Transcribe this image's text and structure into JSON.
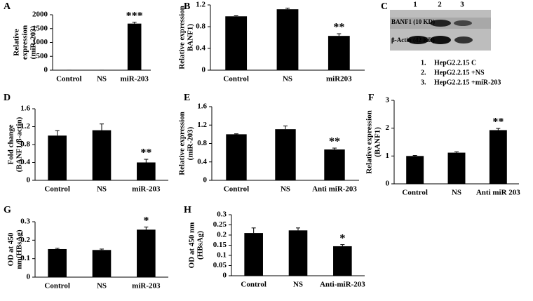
{
  "chart_data": [
    {
      "type": "bar",
      "panel": "A",
      "ylabel": [
        "Relative",
        "expression",
        "(miR-203)"
      ],
      "categories": [
        "Control",
        "NS",
        "miR-203"
      ],
      "values": [
        1,
        1,
        1680
      ],
      "errors": [
        0,
        0,
        50
      ],
      "annotations": [
        null,
        null,
        "***"
      ],
      "ylim": [
        0,
        2000
      ],
      "yticks": [
        0,
        500,
        1000,
        1500,
        2000
      ],
      "color": "#000000"
    },
    {
      "type": "bar",
      "panel": "B",
      "ylabel": [
        "Relative expression",
        "BANF1)"
      ],
      "categories": [
        "Control",
        "NS",
        "miR203"
      ],
      "values": [
        0.99,
        1.12,
        0.63
      ],
      "errors": [
        0.01,
        0.02,
        0.04
      ],
      "annotations": [
        null,
        null,
        "**"
      ],
      "ylim": [
        0,
        1.2
      ],
      "yticks": [
        0,
        0.4,
        0.8,
        1.2
      ],
      "color": "#000000"
    },
    {
      "type": "bar",
      "panel": "D",
      "ylabel": [
        "Fold change",
        "(BANF1/β-actin)"
      ],
      "categories": [
        "Control",
        "NS",
        "miR-203"
      ],
      "values": [
        1.0,
        1.12,
        0.4
      ],
      "errors": [
        0.11,
        0.14,
        0.07
      ],
      "annotations": [
        null,
        null,
        "**"
      ],
      "ylim": [
        0,
        1.6
      ],
      "yticks": [
        0,
        0.4,
        0.8,
        1.2,
        1.6
      ],
      "color": "#000000"
    },
    {
      "type": "bar",
      "panel": "E",
      "ylabel": [
        "Relative expression",
        "(miR-203)"
      ],
      "categories": [
        "Control",
        "NS",
        "Anti miR-203"
      ],
      "values": [
        1.0,
        1.11,
        0.67
      ],
      "errors": [
        0.01,
        0.07,
        0.03
      ],
      "annotations": [
        null,
        null,
        "**"
      ],
      "ylim": [
        0,
        1.6
      ],
      "yticks": [
        0,
        0.4,
        0.8,
        1.2,
        1.6
      ],
      "color": "#000000"
    },
    {
      "type": "bar",
      "panel": "F",
      "ylabel": [
        "Relative expression",
        "(BANF1)"
      ],
      "categories": [
        "Control",
        "NS",
        "Anti miR 203"
      ],
      "values": [
        1.0,
        1.12,
        1.93
      ],
      "errors": [
        0.02,
        0.03,
        0.06
      ],
      "annotations": [
        null,
        null,
        "**"
      ],
      "ylim": [
        0,
        3
      ],
      "yticks": [
        0,
        1,
        2,
        3
      ],
      "color": "#000000"
    },
    {
      "type": "bar",
      "panel": "G",
      "ylabel": [
        "OD at 450",
        "nm(HBsAg)"
      ],
      "categories": [
        "Control",
        "NS",
        "miR-203"
      ],
      "values": [
        0.152,
        0.147,
        0.257
      ],
      "errors": [
        0.004,
        0.005,
        0.014
      ],
      "annotations": [
        null,
        null,
        "*"
      ],
      "ylim": [
        0,
        0.3
      ],
      "yticks": [
        0,
        0.1,
        0.2,
        0.3
      ],
      "color": "#000000"
    },
    {
      "type": "bar",
      "panel": "H",
      "ylabel": [
        "OD at 450 nm",
        "(HBsAg)"
      ],
      "categories": [
        "Control",
        "NS",
        "Anti-miR-203"
      ],
      "values": [
        0.21,
        0.223,
        0.145
      ],
      "errors": [
        0.025,
        0.012,
        0.008
      ],
      "annotations": [
        null,
        null,
        "*"
      ],
      "ylim": [
        0,
        0.3
      ],
      "yticks": [
        0,
        0.05,
        0.1,
        0.15,
        0.2,
        0.25,
        0.3
      ],
      "color": "#000000"
    }
  ],
  "blot": {
    "panel": "C",
    "lanes": [
      "1",
      "2",
      "3"
    ],
    "rows": [
      "BANF1 (10 KD)",
      "β-Actin (42 KD)"
    ],
    "legend": [
      {
        "number": "1.",
        "label": "HepG2.2.15 C"
      },
      {
        "number": "2.",
        "label": "HepG2.2.15 +NS"
      },
      {
        "number": "3.",
        "label": "HepG2.2.15 +miR-203"
      }
    ]
  }
}
